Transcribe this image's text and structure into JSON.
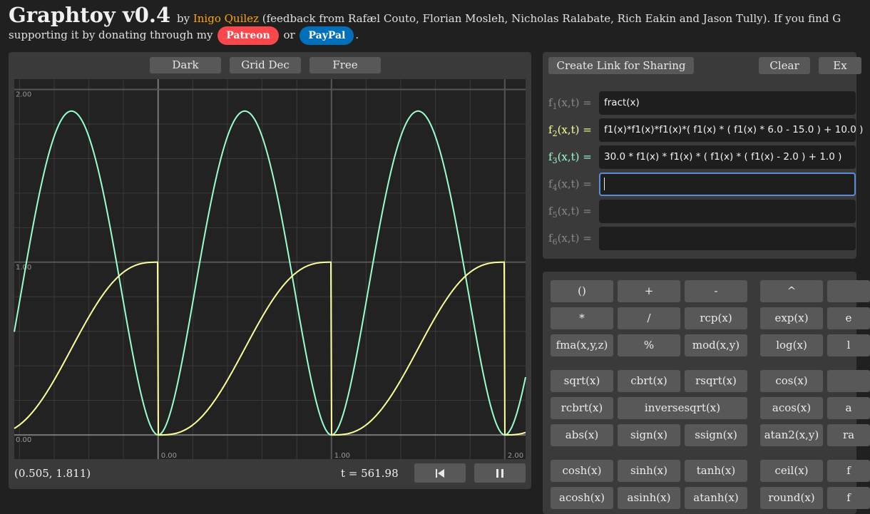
{
  "header": {
    "title": "Graphtoy v0.4",
    "by": "by",
    "author": "Inigo Quilez",
    "credits": "(feedback from Rafæl Couto, Florian Mosleh, Nicholas Ralabate, Rich Eakin and Jason Tully). If you find G",
    "support_text": "supporting it by donating through my",
    "patreon": "Patreon",
    "or": "or",
    "paypal": "PayPal",
    "period": "."
  },
  "plot_controls": {
    "theme": "Dark",
    "grid": "Grid Dec",
    "range": "Free"
  },
  "plot": {
    "coords": "(0.505, 1.811)",
    "time": "t = 561.98",
    "rewind_icon": "skip-back-icon",
    "pause_icon": "pause-icon",
    "x_ticks": [
      "0.00",
      "1.00",
      "2.00"
    ],
    "y_ticks": [
      "2.00",
      "1.00",
      "0.00"
    ],
    "x_range": [
      -0.83,
      2.12
    ],
    "y_range": [
      -0.14,
      2.06
    ],
    "colors": {
      "f2": "#ffff99",
      "f3": "#99ffcc",
      "grid": "#555555",
      "axis": "#777777",
      "background": "#222222"
    }
  },
  "functions_panel": {
    "share": "Create Link for Sharing",
    "clear": "Clear",
    "examples": "Ex",
    "rows": [
      {
        "label": "f",
        "sub": "1",
        "suffix": "(x,t) =",
        "value": "fract(x)",
        "color": "#888888"
      },
      {
        "label": "f",
        "sub": "2",
        "suffix": "(x,t) =",
        "value": "f1(x)*f1(x)*f1(x)*( f1(x) * ( f1(x) * 6.0 - 15.0 ) + 10.0 )",
        "color": "#ffff99"
      },
      {
        "label": "f",
        "sub": "3",
        "suffix": "(x,t) =",
        "value": "30.0 * f1(x) * f1(x) * ( f1(x) * ( f1(x) - 2.0 ) + 1.0 )",
        "color": "#99ffcc"
      },
      {
        "label": "f",
        "sub": "4",
        "suffix": "(x,t) =",
        "value": "",
        "color": "#888888"
      },
      {
        "label": "f",
        "sub": "5",
        "suffix": "(x,t) =",
        "value": "",
        "color": "#888888"
      },
      {
        "label": "f",
        "sub": "6",
        "suffix": "(x,t) =",
        "value": "",
        "color": "#888888"
      }
    ]
  },
  "keypad": {
    "keys": [
      "()",
      "+",
      "-",
      "^",
      "",
      "*",
      "/",
      "rcp(x)",
      "exp(x)",
      "e",
      "fma(x,y,z)",
      "%",
      "mod(x,y)",
      "log(x)",
      "l",
      "sqrt(x)",
      "cbrt(x)",
      "rsqrt(x)",
      "cos(x)",
      "",
      "rcbrt(x)",
      "inversesqrt(x)",
      "acos(x)",
      "a",
      "abs(x)",
      "sign(x)",
      "ssign(x)",
      "atan2(x,y)",
      "ra",
      "cosh(x)",
      "sinh(x)",
      "tanh(x)",
      "ceil(x)",
      "f",
      "acosh(x)",
      "asinh(x)",
      "atanh(x)",
      "round(x)",
      "f"
    ]
  }
}
